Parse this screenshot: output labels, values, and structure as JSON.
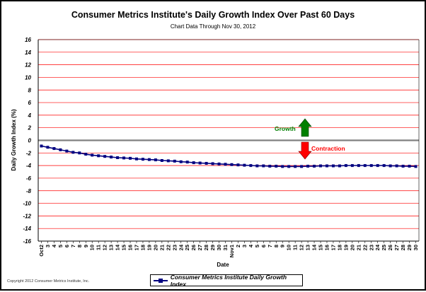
{
  "chart_data": {
    "type": "line",
    "title": "Consumer Metrics Institute's Daily Growth Index Over Past 60 Days",
    "subtitle": "Chart Data Through Nov 30, 2012",
    "xlabel": "Date",
    "ylabel": "Daily Growth Index (%)",
    "ylim": [
      -16,
      16
    ],
    "ytick_step": 2,
    "grid": true,
    "legend_position": "bottom-center",
    "categories": [
      "Oct2",
      "3",
      "4",
      "5",
      "6",
      "7",
      "8",
      "9",
      "10",
      "11",
      "12",
      "13",
      "14",
      "15",
      "16",
      "17",
      "18",
      "19",
      "20",
      "21",
      "22",
      "23",
      "24",
      "25",
      "26",
      "27",
      "28",
      "29",
      "30",
      "31",
      "Nov1",
      "2",
      "3",
      "4",
      "5",
      "6",
      "7",
      "8",
      "9",
      "10",
      "11",
      "12",
      "13",
      "14",
      "15",
      "16",
      "17",
      "18",
      "19",
      "20",
      "21",
      "22",
      "23",
      "24",
      "25",
      "26",
      "27",
      "28",
      "29",
      "30"
    ],
    "series": [
      {
        "name": "Consumer Metrics Institute Daily Growth Index",
        "color": "#000080",
        "values": [
          -0.9,
          -1.1,
          -1.3,
          -1.5,
          -1.7,
          -1.9,
          -2.0,
          -2.2,
          -2.35,
          -2.45,
          -2.55,
          -2.65,
          -2.75,
          -2.8,
          -2.85,
          -2.95,
          -3.0,
          -3.05,
          -3.1,
          -3.2,
          -3.25,
          -3.3,
          -3.4,
          -3.45,
          -3.55,
          -3.6,
          -3.65,
          -3.7,
          -3.75,
          -3.8,
          -3.85,
          -3.9,
          -3.95,
          -4.0,
          -4.05,
          -4.05,
          -4.1,
          -4.1,
          -4.15,
          -4.15,
          -4.15,
          -4.15,
          -4.1,
          -4.1,
          -4.05,
          -4.05,
          -4.05,
          -4.05,
          -4.0,
          -4.0,
          -4.0,
          -4.0,
          -4.0,
          -4.0,
          -4.0,
          -4.05,
          -4.05,
          -4.1,
          -4.1,
          -4.15
        ]
      }
    ],
    "annotations": {
      "growth_label": "Growth",
      "contraction_label": "Contraction"
    },
    "colors": {
      "gridline": "#ff0000",
      "zero_line": "#808080",
      "growth": "#008000",
      "contraction": "#ff0000",
      "series": "#000080"
    }
  },
  "footer": {
    "copyright": "Copyright 2012 Consumer Metrics Institute, Inc."
  }
}
